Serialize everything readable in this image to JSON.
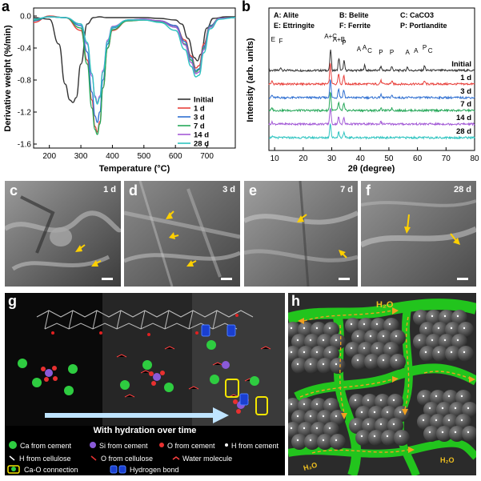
{
  "panels": {
    "a": {
      "label": "a"
    },
    "b": {
      "label": "b"
    },
    "c": {
      "label": "c",
      "tag": "1 d"
    },
    "d": {
      "label": "d",
      "tag": "3 d"
    },
    "e": {
      "label": "e",
      "tag": "7 d"
    },
    "f": {
      "label": "f",
      "tag": "28 d"
    },
    "g": {
      "label": "g"
    },
    "h": {
      "label": "h"
    }
  },
  "colors": {
    "Initial": "#333333",
    "1 d": "#e8413c",
    "3 d": "#2f6fd1",
    "7 d": "#27a85a",
    "14 d": "#a35ad6",
    "28 d": "#2ec4c0"
  },
  "chart_data": [
    {
      "type": "line",
      "xlabel": "Temperature (°C)",
      "ylabel": "Derivative weight (%/min)",
      "xlim": [
        150,
        790
      ],
      "ylim": [
        -1.65,
        0.1
      ],
      "xticks": [
        "200",
        "300",
        "400",
        "500",
        "600",
        "700"
      ],
      "yticks": [
        "0.0",
        "-0.4",
        "-0.8",
        "-1.2",
        "-1.6"
      ],
      "legend": [
        "Initial",
        "1 d",
        "3 d",
        "7 d",
        "14 d",
        "28 d"
      ],
      "legend_position": "bottom-right",
      "series": [
        {
          "name": "Initial",
          "x": [
            150,
            200,
            230,
            250,
            265,
            275,
            285,
            300,
            320,
            340,
            360,
            380,
            400,
            450,
            500,
            550,
            600,
            620,
            640,
            660,
            670,
            680,
            700,
            720,
            760,
            790
          ],
          "y": [
            -0.02,
            -0.04,
            -0.35,
            -0.85,
            -1.05,
            -1.08,
            -1.02,
            -0.6,
            -0.1,
            -0.02,
            -0.01,
            -0.02,
            -0.02,
            -0.02,
            -0.02,
            -0.03,
            -0.05,
            -0.1,
            -0.28,
            -0.52,
            -0.56,
            -0.48,
            -0.15,
            -0.03,
            -0.01,
            -0.01
          ]
        },
        {
          "name": "1 d",
          "x": [
            150,
            200,
            250,
            300,
            320,
            335,
            345,
            352,
            360,
            370,
            385,
            400,
            450,
            500,
            550,
            600,
            630,
            650,
            665,
            675,
            690,
            710,
            740,
            790
          ],
          "y": [
            -0.08,
            0.0,
            -0.02,
            -0.18,
            -0.55,
            -1.05,
            -1.38,
            -1.45,
            -1.32,
            -0.9,
            -0.4,
            -0.18,
            -0.06,
            -0.05,
            -0.06,
            -0.12,
            -0.3,
            -0.5,
            -0.65,
            -0.62,
            -0.35,
            -0.12,
            -0.03,
            -0.02
          ]
        },
        {
          "name": "3 d",
          "x": [
            150,
            200,
            250,
            300,
            320,
            335,
            345,
            352,
            360,
            370,
            385,
            400,
            450,
            500,
            550,
            600,
            630,
            650,
            665,
            675,
            690,
            710,
            740,
            790
          ],
          "y": [
            -0.06,
            -0.01,
            -0.02,
            -0.12,
            -0.45,
            -0.95,
            -1.25,
            -1.33,
            -1.2,
            -0.8,
            -0.35,
            -0.15,
            -0.05,
            -0.04,
            -0.06,
            -0.12,
            -0.32,
            -0.52,
            -0.68,
            -0.66,
            -0.38,
            -0.12,
            -0.03,
            -0.02
          ]
        },
        {
          "name": "7 d",
          "x": [
            150,
            200,
            250,
            300,
            320,
            335,
            345,
            352,
            360,
            370,
            385,
            400,
            450,
            500,
            550,
            600,
            630,
            650,
            665,
            675,
            690,
            710,
            740,
            790
          ],
          "y": [
            -0.05,
            -0.01,
            -0.02,
            -0.15,
            -0.6,
            -1.15,
            -1.42,
            -1.48,
            -1.35,
            -0.9,
            -0.4,
            -0.17,
            -0.06,
            -0.05,
            -0.07,
            -0.14,
            -0.35,
            -0.55,
            -0.7,
            -0.67,
            -0.4,
            -0.13,
            -0.03,
            -0.02
          ]
        },
        {
          "name": "14 d",
          "x": [
            150,
            200,
            250,
            300,
            320,
            335,
            345,
            352,
            360,
            370,
            385,
            400,
            450,
            500,
            550,
            600,
            630,
            650,
            665,
            675,
            690,
            710,
            740,
            790
          ],
          "y": [
            -0.04,
            -0.01,
            -0.02,
            -0.1,
            -0.35,
            -0.75,
            -1.0,
            -1.08,
            -1.0,
            -0.68,
            -0.3,
            -0.13,
            -0.05,
            -0.04,
            -0.06,
            -0.14,
            -0.36,
            -0.58,
            -0.72,
            -0.7,
            -0.42,
            -0.14,
            -0.03,
            -0.02
          ]
        },
        {
          "name": "28 d",
          "x": [
            150,
            200,
            250,
            300,
            320,
            335,
            345,
            352,
            360,
            370,
            385,
            400,
            450,
            500,
            550,
            600,
            630,
            650,
            665,
            675,
            690,
            710,
            740,
            790
          ],
          "y": [
            -0.04,
            -0.01,
            -0.02,
            -0.1,
            -0.33,
            -0.72,
            -1.02,
            -1.1,
            -1.02,
            -0.7,
            -0.32,
            -0.14,
            -0.05,
            -0.05,
            -0.08,
            -0.18,
            -0.42,
            -0.63,
            -0.76,
            -0.74,
            -0.46,
            -0.16,
            -0.04,
            -0.02
          ]
        }
      ]
    },
    {
      "type": "line",
      "xlabel": "2θ (degree)",
      "ylabel": "Intensity (arb. units)",
      "xlim": [
        8,
        80
      ],
      "xticks": [
        "10",
        "20",
        "30",
        "40",
        "50",
        "60",
        "70",
        "80"
      ],
      "legend_text": [
        "A: Alite",
        "B: Belite",
        "C: CaCO3",
        "E: Ettringite",
        "F: Ferrite",
        "P: Portlandite"
      ],
      "peak_annotations": [
        {
          "text": "E",
          "x": 9.5
        },
        {
          "text": "F",
          "x": 12.2
        },
        {
          "text": "A+C",
          "x": 29.6
        },
        {
          "text": "A+B",
          "x": 32.5
        },
        {
          "text": "P",
          "x": 34.3
        },
        {
          "text": "A",
          "x": 39.5
        },
        {
          "text": "A",
          "x": 41.5
        },
        {
          "text": "C",
          "x": 43.3
        },
        {
          "text": "P",
          "x": 47.2
        },
        {
          "text": "P",
          "x": 51.0
        },
        {
          "text": "A",
          "x": 56.5
        },
        {
          "text": "A",
          "x": 59.5
        },
        {
          "text": "P",
          "x": 62.5
        },
        {
          "text": "C",
          "x": 64.5
        }
      ],
      "series": [
        {
          "name": "Initial",
          "peaks": [
            [
              12.2,
              0.25
            ],
            [
              29.6,
              1.9
            ],
            [
              32.5,
              1.1
            ],
            [
              34.3,
              0.85
            ],
            [
              41.5,
              0.45
            ],
            [
              47.2,
              0.35
            ],
            [
              51.0,
              0.35
            ],
            [
              56.5,
              0.3
            ],
            [
              62.5,
              0.4
            ]
          ]
        },
        {
          "name": "1 d",
          "peaks": [
            [
              9.1,
              0.25
            ],
            [
              29.5,
              1.9
            ],
            [
              32.4,
              1.0
            ],
            [
              34.2,
              0.8
            ],
            [
              47.2,
              0.3
            ],
            [
              51.0,
              0.25
            ],
            [
              62.5,
              0.25
            ]
          ]
        },
        {
          "name": "3 d",
          "peaks": [
            [
              9.1,
              0.2
            ],
            [
              29.5,
              1.6
            ],
            [
              32.4,
              0.8
            ],
            [
              34.2,
              0.7
            ],
            [
              47.2,
              0.25
            ],
            [
              51.0,
              0.2
            ]
          ]
        },
        {
          "name": "7 d",
          "peaks": [
            [
              9.1,
              0.2
            ],
            [
              29.5,
              1.7
            ],
            [
              32.4,
              0.7
            ],
            [
              34.2,
              0.6
            ],
            [
              47.2,
              0.2
            ],
            [
              51.0,
              0.2
            ]
          ]
        },
        {
          "name": "14 d",
          "peaks": [
            [
              9.1,
              0.15
            ],
            [
              29.5,
              1.5
            ],
            [
              32.4,
              0.6
            ],
            [
              34.2,
              0.55
            ],
            [
              47.2,
              0.2
            ]
          ]
        },
        {
          "name": "28 d",
          "peaks": [
            [
              9.1,
              0.1
            ],
            [
              29.5,
              1.3
            ],
            [
              32.4,
              0.5
            ],
            [
              34.2,
              0.45
            ]
          ]
        }
      ]
    }
  ],
  "diagram_g": {
    "caption": "With hydration over time",
    "legend": {
      "ca": "Ca from cement",
      "si": "Si from cement",
      "o_cement": "O from cement",
      "h_cement": "H from cement",
      "h_cell": "H from cellulose",
      "o_cell": "O from cellulose",
      "water": "Water molecule",
      "cao": "Ca-O connection",
      "hbond": "Hydrogen bond"
    }
  },
  "diagram_h": {
    "h2o_labels": [
      "H₂O",
      "H₂O",
      "H₂O"
    ]
  }
}
